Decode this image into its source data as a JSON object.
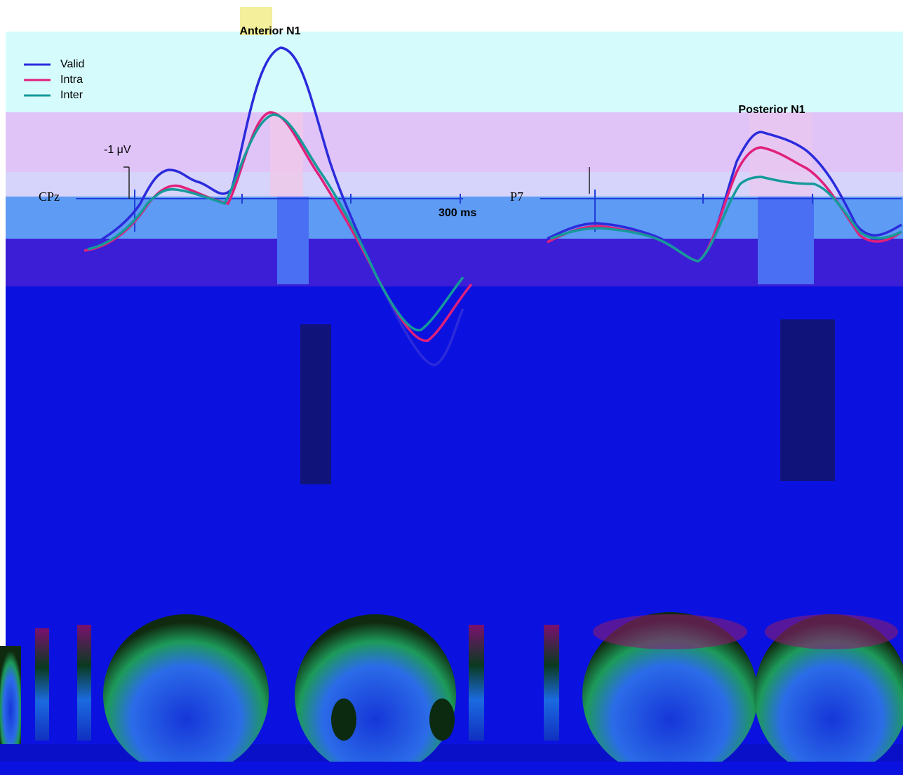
{
  "panels": {
    "anterior_title": "Anterior N1",
    "posterior_title": "Posterior N1"
  },
  "legend": {
    "items": [
      {
        "label": "Valid",
        "color": "#2b2bdc"
      },
      {
        "label": "Intra",
        "color": "#e0207a"
      },
      {
        "label": "Inter",
        "color": "#159a9a"
      }
    ]
  },
  "scale": {
    "amplitude": "-1 μV",
    "time": "300 ms"
  },
  "electrodes": {
    "left": "CPz",
    "right": "P7"
  }
}
